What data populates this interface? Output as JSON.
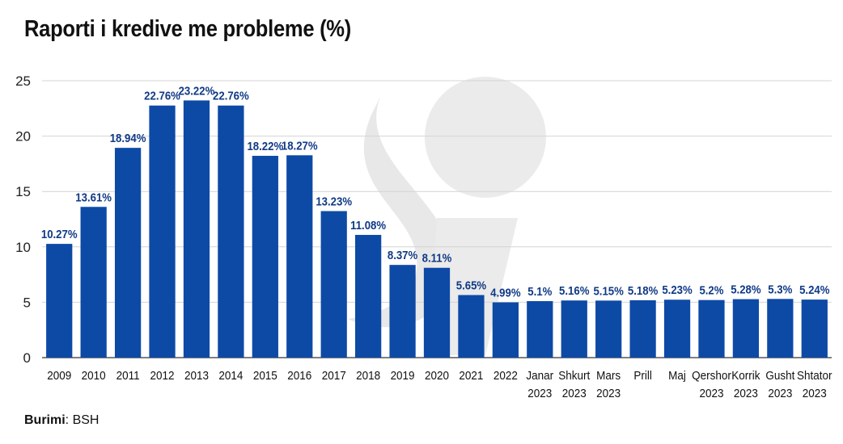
{
  "chart_data": {
    "type": "bar",
    "title": "Raporti i kredive me probleme (%)",
    "xlabel": "",
    "ylabel": "",
    "ylim": [
      0,
      25
    ],
    "yticks": [
      0,
      5,
      10,
      15,
      20,
      25
    ],
    "grid": true,
    "bar_color": "#0d4aa6",
    "label_color": "#103a86",
    "categories": [
      [
        "2009"
      ],
      [
        "2010"
      ],
      [
        "2011"
      ],
      [
        "2012"
      ],
      [
        "2013"
      ],
      [
        "2014"
      ],
      [
        "2015"
      ],
      [
        "2016"
      ],
      [
        "2017"
      ],
      [
        "2018"
      ],
      [
        "2019"
      ],
      [
        "2020"
      ],
      [
        "2021"
      ],
      [
        "2022"
      ],
      [
        "Janar",
        "2023"
      ],
      [
        "Shkurt",
        "2023"
      ],
      [
        "Mars",
        "2023"
      ],
      [
        "Prill"
      ],
      [
        "Maj"
      ],
      [
        "Qershor",
        "2023"
      ],
      [
        "Korrik",
        "2023"
      ],
      [
        "Gusht",
        "2023"
      ],
      [
        "Shtator",
        "2023"
      ]
    ],
    "values": [
      10.27,
      13.61,
      18.94,
      22.76,
      23.22,
      22.76,
      18.22,
      18.27,
      13.23,
      11.08,
      8.37,
      8.11,
      5.65,
      4.99,
      5.1,
      5.16,
      5.15,
      5.18,
      5.23,
      5.2,
      5.28,
      5.3,
      5.24
    ],
    "value_labels": [
      "10.27%",
      "13.61%",
      "18.94%",
      "22.76%",
      "23.22%",
      "22.76%",
      "18.22%",
      "18.27%",
      "13.23%",
      "11.08%",
      "8.37%",
      "8.11%",
      "5.65%",
      "4.99%",
      "5.1%",
      "5.16%",
      "5.15%",
      "5.18%",
      "5.23%",
      "5.2%",
      "5.28%",
      "5.3%",
      "5.24%"
    ]
  },
  "source": {
    "label": "Burimi",
    "text": ": BSH"
  }
}
